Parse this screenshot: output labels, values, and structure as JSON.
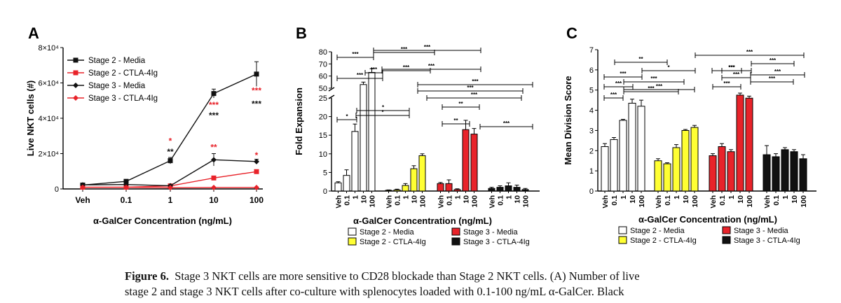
{
  "figure": {
    "caption_label": "Figure 6.",
    "caption_line1": "Stage 3 NKT cells are more sensitive to CD28 blockade than Stage 2 NKT cells. (A) Number of live",
    "caption_line2": "stage 2 and stage 3 NKT cells after co-culture with splenocytes loaded with 0.1-100 ng/mL α-GalCer. Black"
  },
  "colors": {
    "white": "#ffffff",
    "yellow": "#ffff33",
    "red": "#e8232a",
    "black": "#111111",
    "sig_red": "#e8232a"
  },
  "chart_data": [
    {
      "panel": "A",
      "type": "line",
      "xlabel": "α-GalCer Concentration (ng/mL)",
      "ylabel": "Live NKT cells (#)",
      "categories": [
        "Veh",
        "0.1",
        "1",
        "10",
        "100"
      ],
      "ytick_labels": [
        "0",
        "2×10⁴",
        "4×10⁴",
        "6×10⁴",
        "8×10⁴"
      ],
      "ylim": [
        0,
        80000
      ],
      "legend_position": "top-left",
      "series": [
        {
          "name": "Stage 2 - Media",
          "color": "#111111",
          "marker": "square",
          "values": [
            2200,
            4300,
            16000,
            54000,
            65000
          ],
          "errors": [
            600,
            900,
            1800,
            2500,
            7000
          ]
        },
        {
          "name": "Stage 2 - CTLA-4Ig",
          "color": "#e8232a",
          "marker": "square",
          "values": [
            1000,
            1000,
            1700,
            6200,
            9800
          ],
          "errors": [
            200,
            200,
            300,
            500,
            600
          ]
        },
        {
          "name": "Stage 3 - Media",
          "color": "#111111",
          "marker": "diamond",
          "values": [
            2300,
            2500,
            1800,
            16500,
            15500
          ],
          "errors": [
            300,
            400,
            300,
            3500,
            1300
          ]
        },
        {
          "name": "Stage 3 - CTLA-4Ig",
          "color": "#e8232a",
          "marker": "diamond",
          "values": [
            900,
            900,
            700,
            800,
            800
          ],
          "errors": [
            150,
            150,
            150,
            150,
            150
          ]
        }
      ],
      "annotations": [
        {
          "x": "1",
          "text": "*",
          "color": "#e8232a",
          "y": 25500
        },
        {
          "x": "1",
          "text": "**",
          "color": "#111111",
          "y": 19500
        },
        {
          "x": "10",
          "text": "***",
          "color": "#e8232a",
          "y": 46000
        },
        {
          "x": "10",
          "text": "***",
          "color": "#111111",
          "y": 40000
        },
        {
          "x": "10",
          "text": "**",
          "color": "#e8232a",
          "y": 22000
        },
        {
          "x": "100",
          "text": "***",
          "color": "#e8232a",
          "y": 54000
        },
        {
          "x": "100",
          "text": "***",
          "color": "#111111",
          "y": 46500
        },
        {
          "x": "100",
          "text": "*",
          "color": "#e8232a",
          "y": 17500
        }
      ]
    },
    {
      "panel": "B",
      "type": "bar",
      "xlabel": "α-GalCer Concentration (ng/mL)",
      "ylabel": "Fold Expansion",
      "broken_axis": {
        "lower": [
          0,
          25
        ],
        "upper": [
          50,
          80
        ]
      },
      "ytick_labels_lower": [
        "0",
        "5",
        "10",
        "15",
        "20",
        "25"
      ],
      "ytick_labels_upper": [
        "50",
        "60",
        "70",
        "80"
      ],
      "tick_labels": [
        "Veh",
        "0.1",
        "1",
        "10",
        "100"
      ],
      "groups": [
        {
          "name": "Stage 2 - Media",
          "color": "#ffffff",
          "values": [
            2.2,
            4.2,
            16.0,
            53.0,
            63.0
          ],
          "errors": [
            0.3,
            1.5,
            2.0,
            2.0,
            3.0
          ]
        },
        {
          "name": "Stage 2 - CTLA-4Ig",
          "color": "#ffff33",
          "values": [
            0.2,
            0.3,
            1.5,
            6.0,
            9.5
          ],
          "errors": [
            0.1,
            0.2,
            0.5,
            0.8,
            0.5
          ]
        },
        {
          "name": "Stage 3 - Media",
          "color": "#e8232a",
          "values": [
            2.0,
            2.0,
            0.4,
            16.5,
            15.3
          ],
          "errors": [
            0.3,
            1.0,
            0.2,
            2.5,
            1.5
          ]
        },
        {
          "name": "Stage 3 - CTLA-4Ig",
          "color": "#111111",
          "values": [
            0.7,
            1.0,
            1.4,
            1.0,
            0.4
          ],
          "errors": [
            0.3,
            0.4,
            0.8,
            0.6,
            0.3
          ]
        }
      ],
      "significance": [
        "***",
        "***",
        "***",
        "***",
        "***",
        "***",
        "***",
        "***",
        "***",
        "*",
        "*",
        "*",
        "**",
        "**",
        "***",
        "***"
      ],
      "legend": [
        {
          "label": "Stage 2 - Media",
          "color": "#ffffff"
        },
        {
          "label": "Stage 3 - Media",
          "color": "#e8232a"
        },
        {
          "label": "Stage 2 - CTLA-4Ig",
          "color": "#ffff33"
        },
        {
          "label": "Stage 3 - CTLA-4Ig",
          "color": "#111111"
        }
      ]
    },
    {
      "panel": "C",
      "type": "bar",
      "xlabel": "α-GalCer Concentration (ng/mL)",
      "ylabel": "Mean Division Score",
      "ylim": [
        0,
        7
      ],
      "ytick_labels": [
        "0",
        "1",
        "2",
        "3",
        "4",
        "5",
        "6",
        "7"
      ],
      "tick_labels": [
        "Veh",
        "0.1",
        "1",
        "10",
        "100"
      ],
      "groups": [
        {
          "name": "Stage 2 - Media",
          "color": "#ffffff",
          "values": [
            2.2,
            2.55,
            3.5,
            4.35,
            4.2
          ],
          "errors": [
            0.15,
            0.1,
            0.05,
            0.2,
            0.3
          ]
        },
        {
          "name": "Stage 2 - CTLA-4Ig",
          "color": "#ffff33",
          "values": [
            1.5,
            1.35,
            2.15,
            3.0,
            3.15
          ],
          "errors": [
            0.1,
            0.05,
            0.15,
            0.05,
            0.1
          ]
        },
        {
          "name": "Stage 3 - Media",
          "color": "#e8232a",
          "values": [
            1.75,
            2.2,
            1.95,
            4.75,
            4.6
          ],
          "errors": [
            0.1,
            0.15,
            0.1,
            0.1,
            0.1
          ]
        },
        {
          "name": "Stage 3 - CTLA-4Ig",
          "color": "#111111",
          "values": [
            1.8,
            1.7,
            2.05,
            1.95,
            1.6
          ],
          "errors": [
            0.45,
            0.15,
            0.1,
            0.1,
            0.2
          ]
        }
      ],
      "significance": [
        "**",
        "***",
        "*",
        "***",
        "***",
        "***",
        "***",
        "***",
        "***",
        "***",
        "***",
        "***",
        "***",
        "***",
        "***",
        "***"
      ],
      "legend": [
        {
          "label": "Stage 2 - Media",
          "color": "#ffffff"
        },
        {
          "label": "Stage 3 - Media",
          "color": "#e8232a"
        },
        {
          "label": "Stage 2 - CTLA-4Ig",
          "color": "#ffff33"
        },
        {
          "label": "Stage 3 - CTLA-4Ig",
          "color": "#111111"
        }
      ]
    }
  ]
}
